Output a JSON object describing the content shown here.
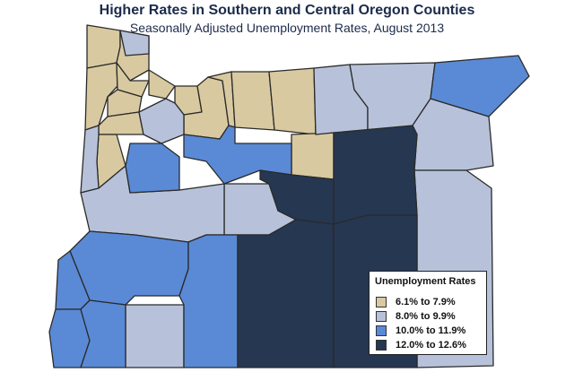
{
  "title": "Higher Rates in Southern and Central Oregon Counties",
  "subtitle": "Seasonally Adjusted Unemployment Rates, August 2013",
  "legend": {
    "title": "Unemployment Rates",
    "items": [
      {
        "label": "6.1% to 7.9%",
        "color": "#d8c9a0"
      },
      {
        "label": "8.0% to 9.9%",
        "color": "#b7c2da"
      },
      {
        "label": "10.0% to 11.9%",
        "color": "#5a8ad6"
      },
      {
        "label": "12.0% to 12.6%",
        "color": "#263752"
      }
    ]
  },
  "colors": {
    "border": "#2a2a2a",
    "background": "#ffffff"
  }
}
